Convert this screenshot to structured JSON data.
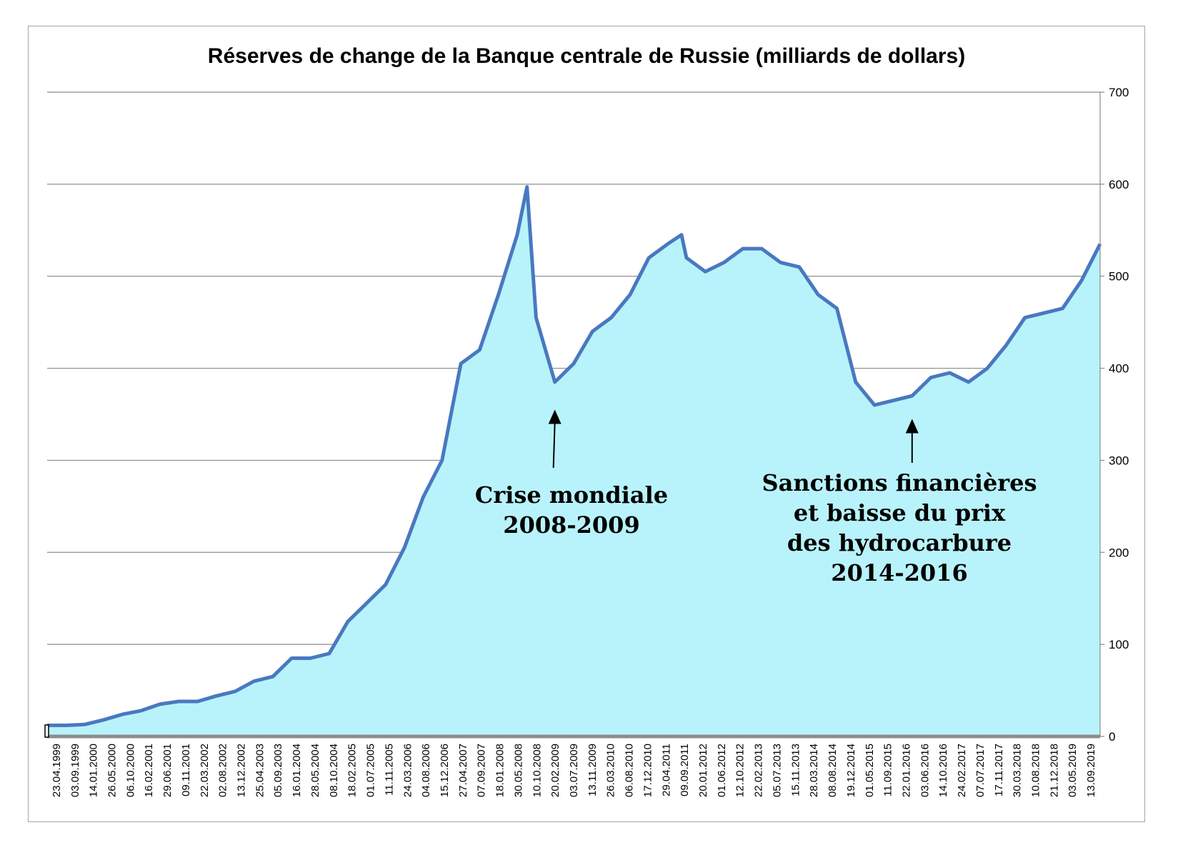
{
  "colors": {
    "line": "#4a78c0",
    "fill": "#b8f3fb",
    "grid": "#8c8c8c",
    "baseline": "#8c8c8c",
    "frame": "#a6a6a6"
  },
  "chart_data": {
    "type": "area",
    "title": "Réserves de change de la Banque centrale de Russie (milliards de dollars)",
    "xlabel": "",
    "ylabel": "",
    "ylim": [
      0,
      700
    ],
    "y_ticks": [
      "0",
      "100",
      "200",
      "300",
      "400",
      "500",
      "600",
      "700"
    ],
    "y_axis_side": "right",
    "grid": true,
    "legend": "none",
    "x_tick_labels": [
      "23.04.1999",
      "03.09.1999",
      "14.01.2000",
      "26.05.2000",
      "06.10.2000",
      "16.02.2001",
      "29.06.2001",
      "09.11.2001",
      "22.03.2002",
      "02.08.2002",
      "13.12.2002",
      "25.04.2003",
      "05.09.2003",
      "16.01.2004",
      "28.05.2004",
      "08.10.2004",
      "18.02.2005",
      "01.07.2005",
      "11.11.2005",
      "24.03.2006",
      "04.08.2006",
      "15.12.2006",
      "27.04.2007",
      "07.09.2007",
      "18.01.2008",
      "30.05.2008",
      "10.10.2008",
      "20.02.2009",
      "03.07.2009",
      "13.11.2009",
      "26.03.2010",
      "06.08.2010",
      "17.12.2010",
      "29.04.2011",
      "09.09.2011",
      "20.01.2012",
      "01.06.2012",
      "12.10.2012",
      "22.02.2013",
      "05.07.2013",
      "15.11.2013",
      "28.03.2014",
      "08.08.2014",
      "19.12.2014",
      "01.05.2015",
      "11.09.2015",
      "22.01.2016",
      "03.06.2016",
      "14.10.2016",
      "24.02.2017",
      "07.07.2017",
      "17.11.2017",
      "30.03.2018",
      "10.08.2018",
      "21.12.2018",
      "03.05.2019",
      "13.09.2019"
    ],
    "series": [
      {
        "x": [
          "23.04.1999",
          "03.09.1999",
          "14.01.2000",
          "26.05.2000",
          "06.10.2000",
          "16.02.2001",
          "29.06.2001",
          "09.11.2001",
          "22.03.2002",
          "02.08.2002",
          "13.12.2002",
          "25.04.2003",
          "05.09.2003",
          "16.01.2004",
          "28.05.2004",
          "08.10.2004",
          "18.02.2005",
          "01.07.2005",
          "11.11.2005",
          "24.03.2006",
          "04.08.2006",
          "15.12.2006",
          "27.04.2007",
          "07.09.2007",
          "18.01.2008",
          "30.05.2008",
          "07.08.2008",
          "10.10.2008",
          "20.02.2009",
          "03.07.2009",
          "13.11.2009",
          "26.03.2010",
          "06.08.2010",
          "17.12.2010",
          "29.04.2011",
          "05.08.2011",
          "09.09.2011",
          "20.01.2012",
          "01.06.2012",
          "12.10.2012",
          "22.02.2013",
          "05.07.2013",
          "15.11.2013",
          "28.03.2014",
          "08.08.2014",
          "19.12.2014",
          "01.05.2015",
          "11.09.2015",
          "22.01.2016",
          "03.06.2016",
          "14.10.2016",
          "24.02.2017",
          "07.07.2017",
          "17.11.2017",
          "30.03.2018",
          "10.08.2018",
          "21.12.2018",
          "03.05.2019",
          "13.09.2019"
        ],
        "values": [
          12,
          12,
          13,
          18,
          24,
          28,
          35,
          38,
          38,
          44,
          49,
          60,
          65,
          85,
          85,
          90,
          125,
          145,
          165,
          205,
          260,
          300,
          405,
          420,
          480,
          545,
          597,
          455,
          385,
          405,
          440,
          455,
          480,
          520,
          535,
          545,
          520,
          505,
          515,
          530,
          530,
          515,
          510,
          480,
          465,
          385,
          360,
          365,
          370,
          390,
          395,
          385,
          400,
          425,
          455,
          460,
          465,
          495,
          535
        ]
      }
    ],
    "annotations": [
      {
        "lines": [
          "Crise mondiale",
          "2008-2009"
        ],
        "arrow_to": {
          "x": "20.02.2009",
          "y": 355
        }
      },
      {
        "lines": [
          "Sanctions financières",
          "et baisse du prix",
          "des hydrocarbure",
          "2014-2016"
        ],
        "arrow_to": {
          "x": "22.01.2016",
          "y": 345
        }
      }
    ]
  }
}
